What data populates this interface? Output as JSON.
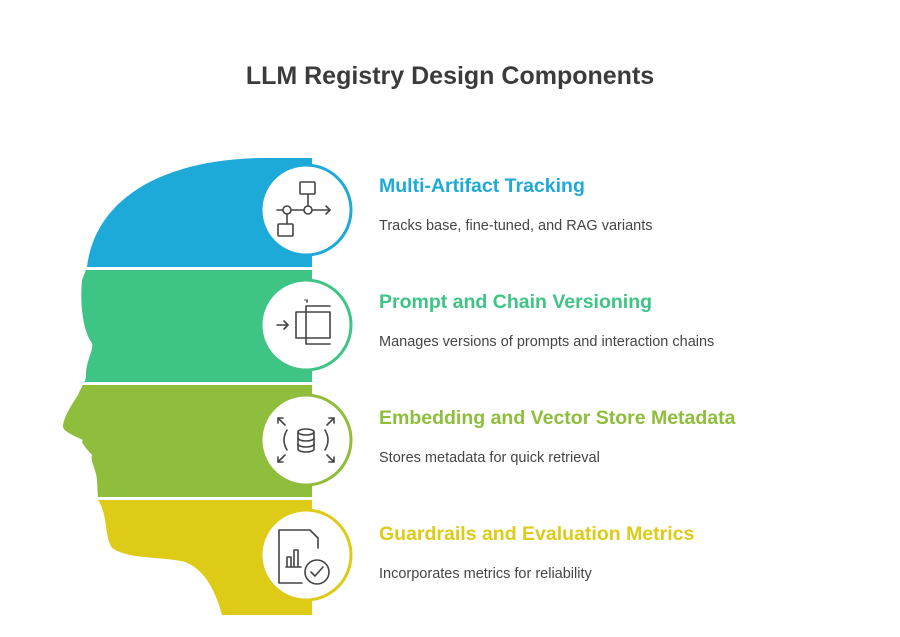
{
  "title": "LLM Registry Design Components",
  "items": [
    {
      "heading": "Multi-Artifact Tracking",
      "description": "Tracks base, fine-tuned, and RAG variants",
      "color": "#1EAAD9",
      "icon": "workflow-diagram-icon"
    },
    {
      "heading": "Prompt and Chain Versioning",
      "description": "Manages versions of prompts and interaction chains",
      "color": "#3EC485",
      "icon": "input-bracket-icon"
    },
    {
      "heading": "Embedding and Vector Store Metadata",
      "description": "Stores metadata for quick retrieval",
      "color": "#8FBD3C",
      "icon": "database-expand-icon"
    },
    {
      "heading": "Guardrails and Evaluation Metrics",
      "description": "Incorporates metrics for reliability",
      "color": "#DDCB17",
      "icon": "report-check-icon"
    }
  ]
}
